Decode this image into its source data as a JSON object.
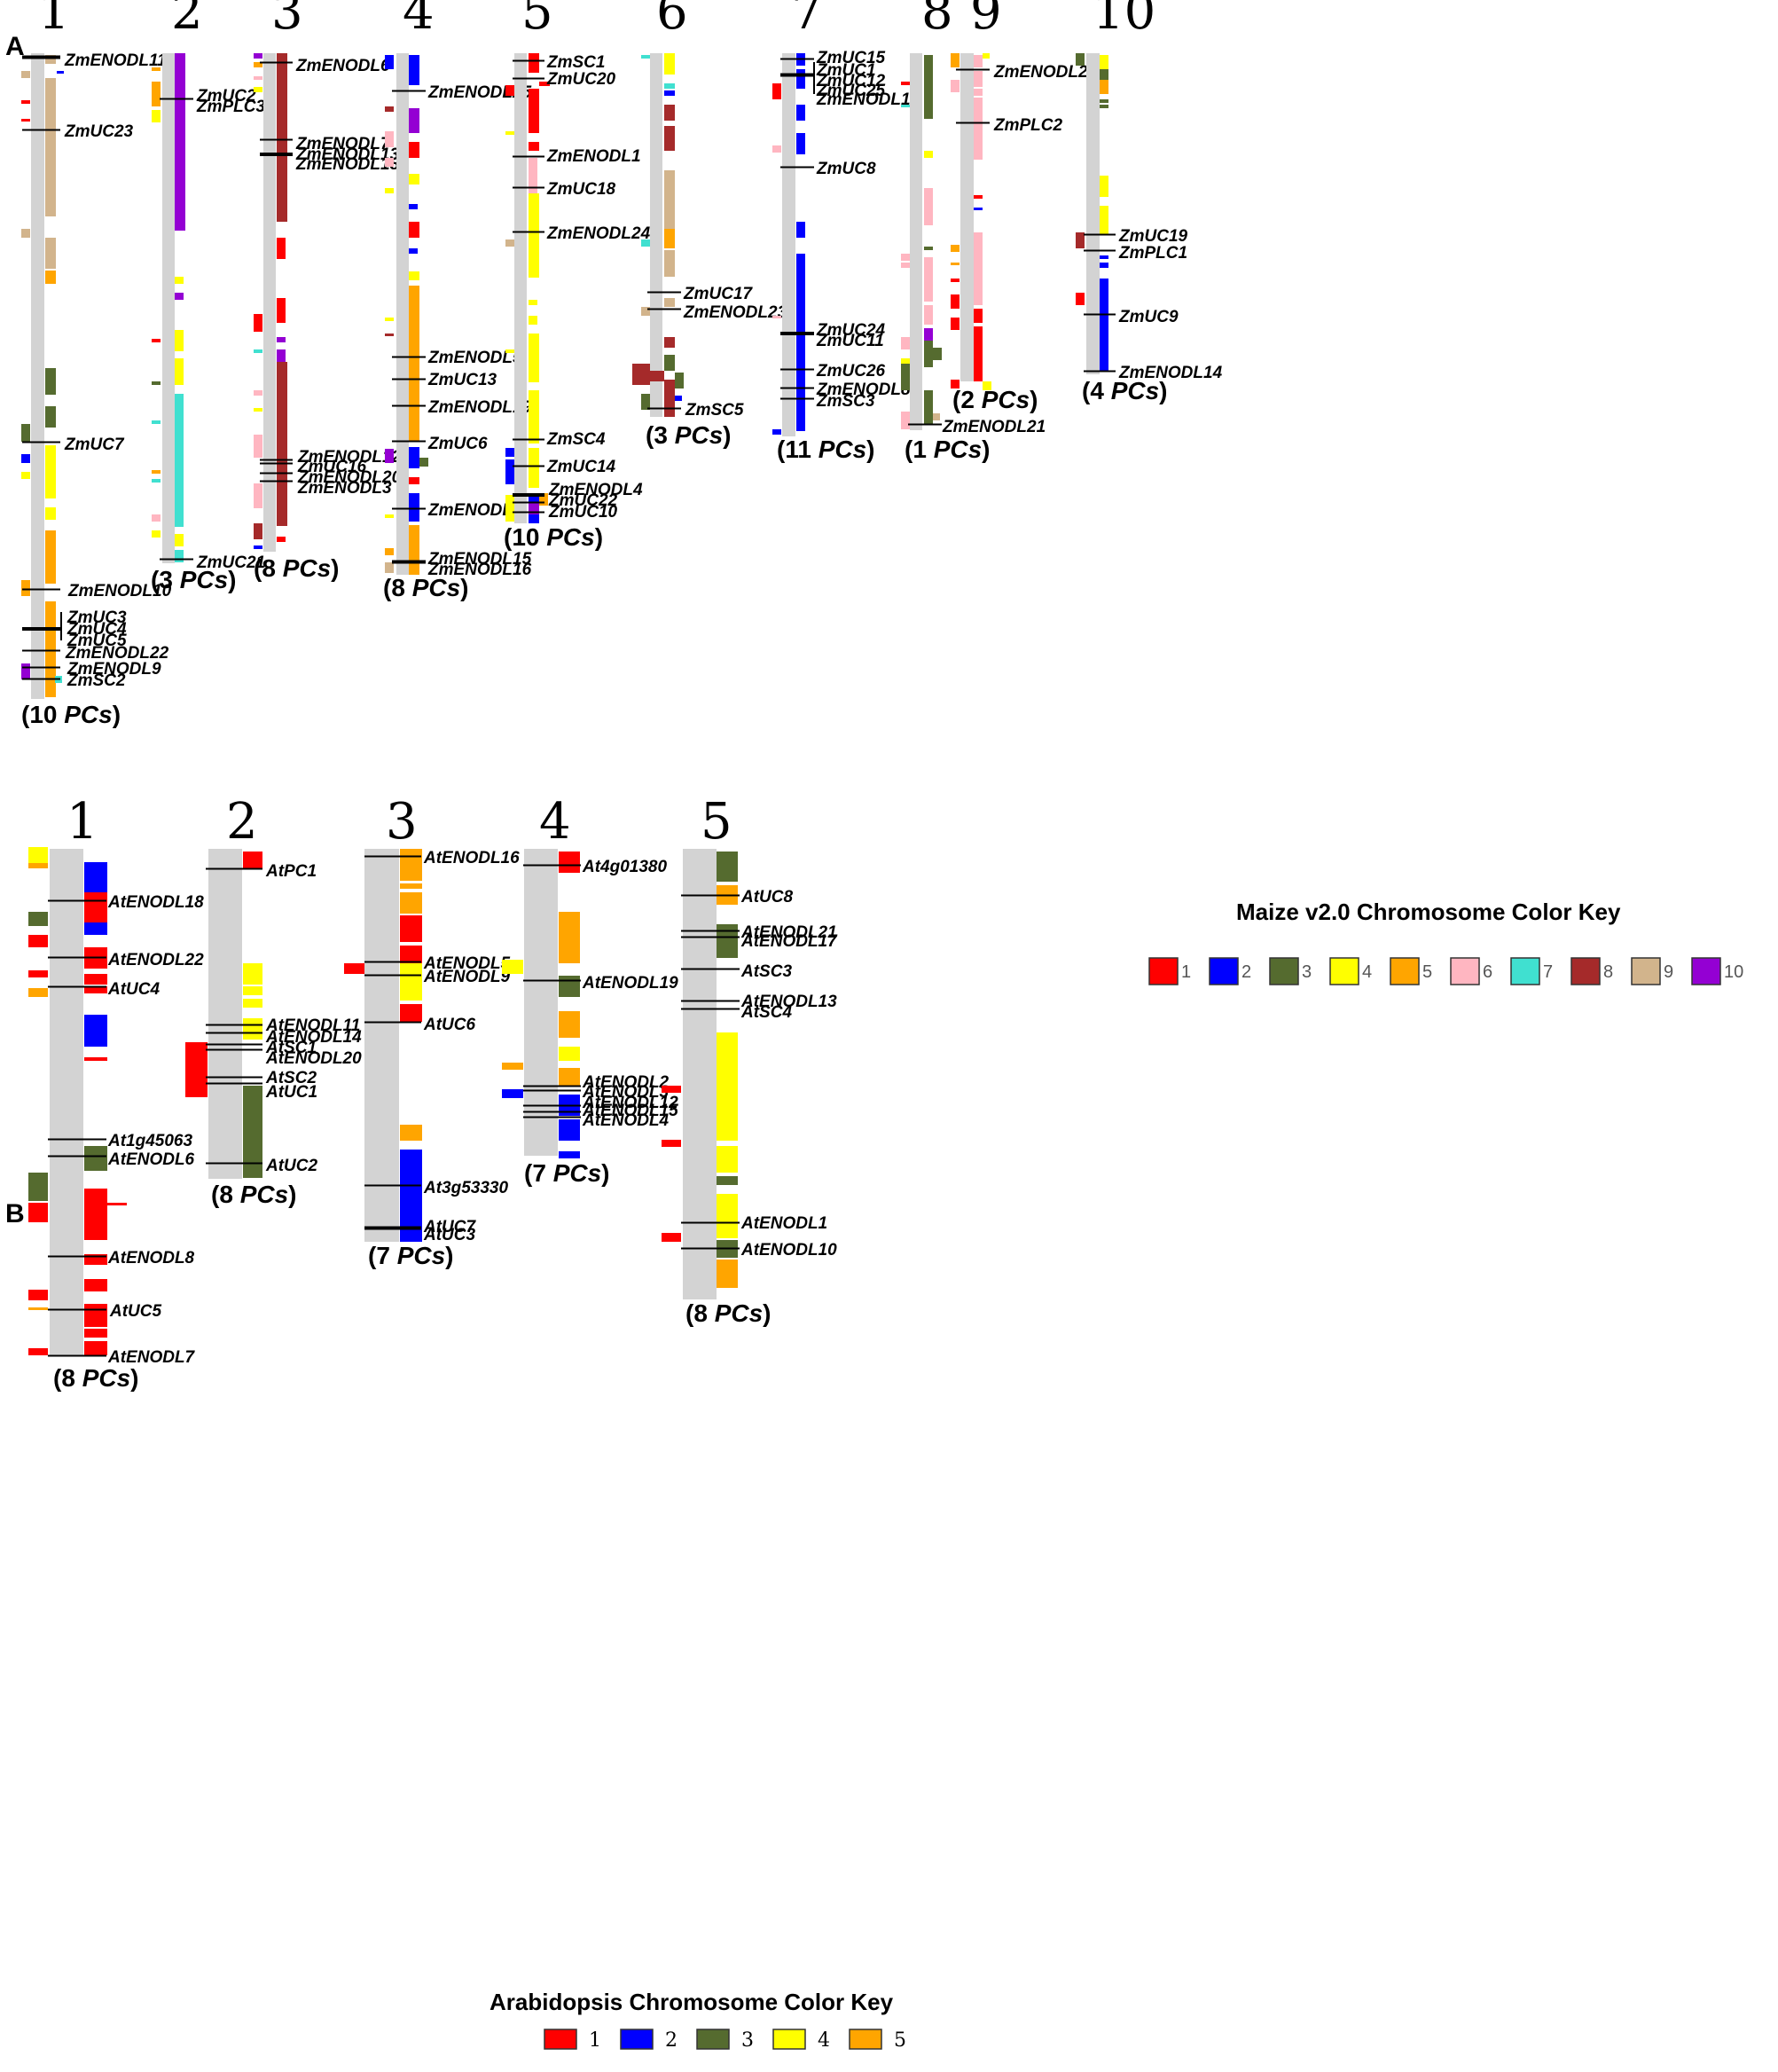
{
  "panel_a_label": "A",
  "panel_b_label": "B",
  "maize": {
    "chromosomes": [
      {
        "number": "1",
        "pcs": "(10 PCs)",
        "genes": [
          "ZmENODL11",
          "ZmUC23",
          "ZmUC7",
          "ZmENODL10",
          "ZmUC3",
          "ZmUC4",
          "ZmUC5",
          "ZmENODL22",
          "ZmENODL9",
          "ZmSC2"
        ]
      },
      {
        "number": "2",
        "pcs": "(3 PCs)",
        "genes": [
          "ZmUC2",
          "ZmPLC3",
          "ZmUC21"
        ]
      },
      {
        "number": "3",
        "pcs": "(8 PCs)",
        "genes": [
          "ZmENODL6",
          "ZmENODL7",
          "ZmENODL13",
          "ZmENODL18",
          "ZmENODL12",
          "ZmUC16",
          "ZmENODL20",
          "ZmENODL3"
        ]
      },
      {
        "number": "4",
        "pcs": "(8 PCs)",
        "genes": [
          "ZmENODL25",
          "ZmENODL5",
          "ZmUC13",
          "ZmENODL19",
          "ZmUC6",
          "ZmENODL2",
          "ZmENODL15",
          "ZmENODL16"
        ]
      },
      {
        "number": "5",
        "pcs": "(10 PCs)",
        "genes": [
          "ZmSC1",
          "ZmUC20",
          "ZmENODL1",
          "ZmUC18",
          "ZmENODL24",
          "ZmSC4",
          "ZmUC14",
          "ZmENODL4",
          "ZmUC22",
          "ZmUC10"
        ]
      },
      {
        "number": "6",
        "pcs": "(3 PCs)",
        "genes": [
          "ZmUC17",
          "ZmENODL23",
          "ZmSC5"
        ]
      },
      {
        "number": "7",
        "pcs": "(11 PCs)",
        "genes": [
          "ZmUC15",
          "ZmUC1",
          "ZmUC12",
          "ZmUC25",
          "ZmENODL17",
          "ZmUC8",
          "ZmUC24",
          "ZmUC11",
          "ZmUC26",
          "ZmENODL8",
          "ZmSC3"
        ]
      },
      {
        "number": "8",
        "pcs": "(1 PCs)",
        "genes": [
          "ZmENODL21"
        ]
      },
      {
        "number": "9",
        "pcs": "(2 PCs)",
        "genes": [
          "ZmENODL26",
          "ZmPLC2"
        ]
      },
      {
        "number": "10",
        "pcs": "(4 PCs)",
        "genes": [
          "ZmUC19",
          "ZmPLC1",
          "ZmUC9",
          "ZmENODL14"
        ]
      }
    ],
    "key": {
      "title": "Maize v2.0 Chromosome Color Key",
      "items": [
        {
          "label": "1",
          "color": "#ff0000"
        },
        {
          "label": "2",
          "color": "#0000ff"
        },
        {
          "label": "3",
          "color": "#556b2f"
        },
        {
          "label": "4",
          "color": "#ffff00"
        },
        {
          "label": "5",
          "color": "#ffa500"
        },
        {
          "label": "6",
          "color": "#ffb6c1"
        },
        {
          "label": "7",
          "color": "#40e0d0"
        },
        {
          "label": "8",
          "color": "#a52a2a"
        },
        {
          "label": "9",
          "color": "#d2b48c"
        },
        {
          "label": "10",
          "color": "#9400d3"
        }
      ]
    }
  },
  "arabidopsis": {
    "chromosomes": [
      {
        "number": "1",
        "pcs": "(8 PCs)",
        "genes": [
          "AtENODL18",
          "AtENODL22",
          "AtUC4",
          "At1g45063",
          "AtENODL6",
          "AtENODL8",
          "AtUC5",
          "AtENODL7"
        ]
      },
      {
        "number": "2",
        "pcs": "(8 PCs)",
        "genes": [
          "AtPC1",
          "AtENODL11",
          "AtENODL14",
          "AtSC1",
          "AtENODL20",
          "AtSC2",
          "AtUC1",
          "AtUC2"
        ]
      },
      {
        "number": "3",
        "pcs": "(7 PCs)",
        "genes": [
          "AtENODL16",
          "AtENODL5",
          "AtENODL9",
          "AtUC6",
          "At3g53330",
          "AtUC7",
          "AtUC3"
        ]
      },
      {
        "number": "4",
        "pcs": "(7 PCs)",
        "genes": [
          "At4g01380",
          "AtENODL19",
          "AtENODL2",
          "AtENODL3",
          "AtENODL12",
          "AtENODL15",
          "AtENODL4"
        ]
      },
      {
        "number": "5",
        "pcs": "(8 PCs)",
        "genes": [
          "AtUC8",
          "AtENODL21",
          "AtENODL17",
          "AtSC3",
          "AtENODL13",
          "AtSC4",
          "AtENODL1",
          "AtENODL10"
        ]
      }
    ],
    "key": {
      "title": "Arabidopsis Chromosome Color Key",
      "items": [
        {
          "label": "1",
          "color": "#ff0000"
        },
        {
          "label": "2",
          "color": "#0000ff"
        },
        {
          "label": "3",
          "color": "#556b2f"
        },
        {
          "label": "4",
          "color": "#ffff00"
        },
        {
          "label": "5",
          "color": "#ffa500"
        }
      ]
    }
  }
}
